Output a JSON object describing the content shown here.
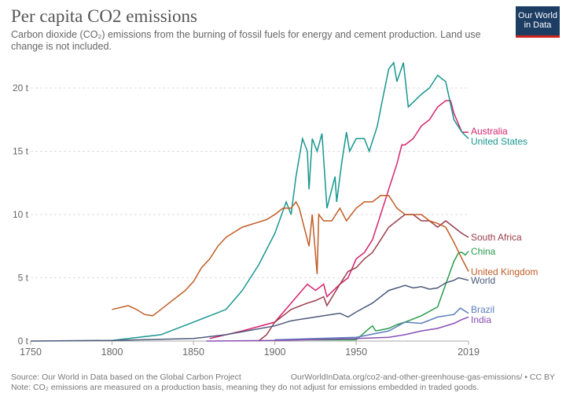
{
  "header": {
    "title": "Per capita CO2 emissions",
    "subtitle": "Carbon dioxide (CO₂) emissions from the burning of fossil fuels for energy and cement production. Land use change is not included.",
    "logo_text": "Our World in Data"
  },
  "footer": {
    "source": "Source: Our World in Data based on the Global Carbon Project",
    "url": "OurWorldInData.org/co2-and-other-greenhouse-gas-emissions/ • CC BY",
    "note": "Note: CO₂ emissions are measured on a production basis, meaning they do not adjust for emissions embedded in traded goods."
  },
  "chart_data": {
    "type": "line",
    "title": "Per capita CO2 emissions",
    "xlim": [
      1750,
      2019
    ],
    "ylim": [
      0,
      22
    ],
    "x_ticks": [
      "1750",
      "1800",
      "1850",
      "1900",
      "1950",
      "2019"
    ],
    "y_ticks": [
      "0 t",
      "5 t",
      "10 t",
      "15 t",
      "20 t"
    ],
    "grid": "horizontal dashed",
    "legend": "right, labels at line ends",
    "series": [
      {
        "name": "Australia",
        "color": "#d6246e",
        "points": [
          [
            1860,
            0.2
          ],
          [
            1880,
            0.8
          ],
          [
            1900,
            1.5
          ],
          [
            1910,
            3
          ],
          [
            1920,
            4.5
          ],
          [
            1925,
            4
          ],
          [
            1930,
            4.5
          ],
          [
            1932,
            3.5
          ],
          [
            1940,
            4.5
          ],
          [
            1945,
            5
          ],
          [
            1950,
            6.5
          ],
          [
            1955,
            7
          ],
          [
            1960,
            8
          ],
          [
            1965,
            10
          ],
          [
            1970,
            12
          ],
          [
            1975,
            14
          ],
          [
            1978,
            15.5
          ],
          [
            1980,
            15.5
          ],
          [
            1985,
            16
          ],
          [
            1990,
            17
          ],
          [
            1995,
            17.5
          ],
          [
            2000,
            18.5
          ],
          [
            2005,
            19
          ],
          [
            2008,
            19
          ],
          [
            2010,
            18
          ],
          [
            2015,
            16.5
          ],
          [
            2019,
            16.5
          ]
        ]
      },
      {
        "name": "United States",
        "color": "#18968f",
        "points": [
          [
            1800,
            0.05
          ],
          [
            1830,
            0.5
          ],
          [
            1850,
            1.5
          ],
          [
            1870,
            2.5
          ],
          [
            1880,
            4
          ],
          [
            1890,
            6
          ],
          [
            1900,
            8.5
          ],
          [
            1907,
            11
          ],
          [
            1910,
            10
          ],
          [
            1913,
            13
          ],
          [
            1917,
            16
          ],
          [
            1920,
            15
          ],
          [
            1921,
            12
          ],
          [
            1923,
            16
          ],
          [
            1926,
            15
          ],
          [
            1929,
            16.4
          ],
          [
            1932,
            10.5
          ],
          [
            1937,
            13
          ],
          [
            1938,
            11
          ],
          [
            1941,
            14
          ],
          [
            1944,
            16.5
          ],
          [
            1946,
            15
          ],
          [
            1950,
            16
          ],
          [
            1955,
            16
          ],
          [
            1958,
            15
          ],
          [
            1963,
            17
          ],
          [
            1966,
            19
          ],
          [
            1970,
            21.5
          ],
          [
            1973,
            22
          ],
          [
            1975,
            20.5
          ],
          [
            1979,
            22
          ],
          [
            1982,
            18.5
          ],
          [
            1986,
            19
          ],
          [
            1990,
            19.5
          ],
          [
            1995,
            20
          ],
          [
            2000,
            21
          ],
          [
            2005,
            20.5
          ],
          [
            2010,
            17.5
          ],
          [
            2015,
            16.5
          ],
          [
            2019,
            16
          ]
        ]
      },
      {
        "name": "South Africa",
        "color": "#9a3e4a",
        "points": [
          [
            1890,
            0
          ],
          [
            1895,
            0.5
          ],
          [
            1900,
            1.5
          ],
          [
            1910,
            2.5
          ],
          [
            1920,
            3
          ],
          [
            1925,
            3.2
          ],
          [
            1930,
            3.5
          ],
          [
            1932,
            2.8
          ],
          [
            1940,
            4.5
          ],
          [
            1945,
            5.5
          ],
          [
            1950,
            5.8
          ],
          [
            1955,
            6.5
          ],
          [
            1960,
            7
          ],
          [
            1965,
            8
          ],
          [
            1970,
            9
          ],
          [
            1975,
            9.5
          ],
          [
            1980,
            10
          ],
          [
            1985,
            10
          ],
          [
            1990,
            9.5
          ],
          [
            1995,
            9.5
          ],
          [
            2000,
            9
          ],
          [
            2005,
            9.5
          ],
          [
            2010,
            9
          ],
          [
            2015,
            8.5
          ],
          [
            2019,
            8.2
          ]
        ]
      },
      {
        "name": "China",
        "color": "#2a9a4a",
        "points": [
          [
            1900,
            0.1
          ],
          [
            1950,
            0.1
          ],
          [
            1958,
            1
          ],
          [
            1960,
            1.2
          ],
          [
            1962,
            0.8
          ],
          [
            1970,
            1
          ],
          [
            1975,
            1.3
          ],
          [
            1980,
            1.5
          ],
          [
            1990,
            2
          ],
          [
            2000,
            2.7
          ],
          [
            2005,
            4.5
          ],
          [
            2010,
            6.3
          ],
          [
            2013,
            7
          ],
          [
            2015,
            7
          ],
          [
            2017,
            6.8
          ],
          [
            2019,
            7.1
          ]
        ]
      },
      {
        "name": "United Kingdom",
        "color": "#c15d26",
        "points": [
          [
            1800,
            2.5
          ],
          [
            1810,
            2.8
          ],
          [
            1815,
            2.5
          ],
          [
            1820,
            2.1
          ],
          [
            1825,
            2
          ],
          [
            1830,
            2.5
          ],
          [
            1835,
            3
          ],
          [
            1840,
            3.5
          ],
          [
            1845,
            4
          ],
          [
            1850,
            4.7
          ],
          [
            1855,
            5.8
          ],
          [
            1860,
            6.5
          ],
          [
            1865,
            7.5
          ],
          [
            1870,
            8.2
          ],
          [
            1875,
            8.6
          ],
          [
            1880,
            9
          ],
          [
            1885,
            9.2
          ],
          [
            1890,
            9.4
          ],
          [
            1895,
            9.6
          ],
          [
            1900,
            10
          ],
          [
            1905,
            10.5
          ],
          [
            1910,
            10.5
          ],
          [
            1913,
            11
          ],
          [
            1915,
            10.5
          ],
          [
            1921,
            7.5
          ],
          [
            1923,
            10
          ],
          [
            1926,
            5.3
          ],
          [
            1927,
            10
          ],
          [
            1930,
            9.5
          ],
          [
            1935,
            9.5
          ],
          [
            1940,
            10.5
          ],
          [
            1944,
            9.5
          ],
          [
            1950,
            10.5
          ],
          [
            1955,
            11
          ],
          [
            1960,
            11
          ],
          [
            1965,
            11.5
          ],
          [
            1970,
            11.5
          ],
          [
            1975,
            10.5
          ],
          [
            1980,
            10
          ],
          [
            1985,
            10
          ],
          [
            1990,
            10
          ],
          [
            1995,
            9.5
          ],
          [
            2000,
            9.3
          ],
          [
            2005,
            9
          ],
          [
            2010,
            7.8
          ],
          [
            2015,
            6.5
          ],
          [
            2019,
            5.5
          ]
        ]
      },
      {
        "name": "World",
        "color": "#4c5a7a",
        "points": [
          [
            1750,
            0
          ],
          [
            1800,
            0.05
          ],
          [
            1850,
            0.2
          ],
          [
            1870,
            0.5
          ],
          [
            1900,
            1.2
          ],
          [
            1910,
            1.6
          ],
          [
            1920,
            1.8
          ],
          [
            1930,
            2
          ],
          [
            1940,
            2.2
          ],
          [
            1945,
            1.9
          ],
          [
            1950,
            2.3
          ],
          [
            1960,
            3
          ],
          [
            1970,
            4
          ],
          [
            1975,
            4.2
          ],
          [
            1980,
            4.4
          ],
          [
            1985,
            4.2
          ],
          [
            1990,
            4.3
          ],
          [
            1995,
            4.1
          ],
          [
            2000,
            4.2
          ],
          [
            2005,
            4.6
          ],
          [
            2010,
            4.8
          ],
          [
            2013,
            5
          ],
          [
            2019,
            4.8
          ]
        ]
      },
      {
        "name": "Brazil",
        "color": "#5b7dbd",
        "points": [
          [
            1900,
            0.1
          ],
          [
            1950,
            0.3
          ],
          [
            1970,
            0.8
          ],
          [
            1980,
            1.5
          ],
          [
            1990,
            1.4
          ],
          [
            2000,
            1.9
          ],
          [
            2010,
            2.1
          ],
          [
            2014,
            2.6
          ],
          [
            2019,
            2.2
          ]
        ]
      },
      {
        "name": "India",
        "color": "#8a4fb5",
        "points": [
          [
            1858,
            0
          ],
          [
            1900,
            0.05
          ],
          [
            1950,
            0.2
          ],
          [
            1970,
            0.3
          ],
          [
            1980,
            0.5
          ],
          [
            1990,
            0.8
          ],
          [
            2000,
            1
          ],
          [
            2010,
            1.4
          ],
          [
            2015,
            1.7
          ],
          [
            2019,
            1.9
          ]
        ]
      }
    ]
  }
}
